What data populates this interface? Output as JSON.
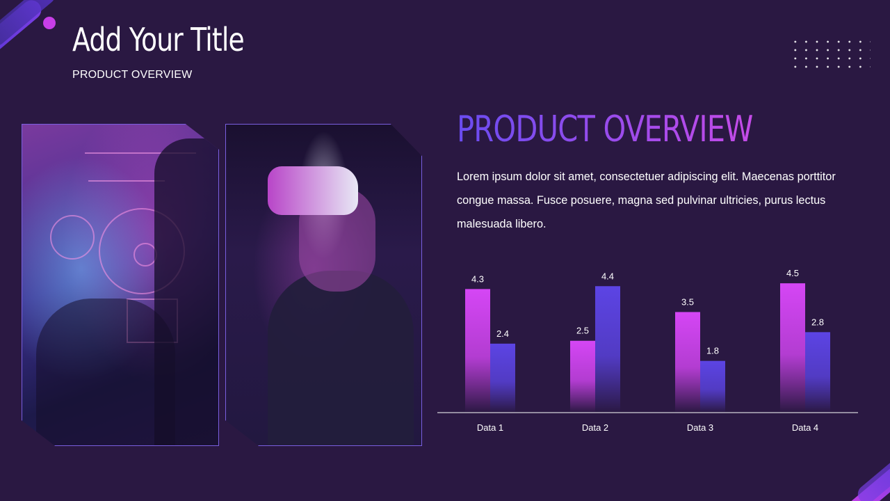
{
  "slide": {
    "title": "Add Your Title",
    "subtitle": "PRODUCT OVERVIEW",
    "heading": "PRODUCT OVERVIEW",
    "body": "Lorem ipsum dolor sit amet, consectetuer adipiscing elit.  Maecenas porttitor congue massa. Fusce posuere, magna sed pulvinar ultricies, purus lectus malesuada libero."
  },
  "images": [
    {
      "name": "person-touching-futuristic-hud"
    },
    {
      "name": "person-wearing-vr-headset"
    }
  ],
  "colors": {
    "background": "#2a1842",
    "accent_pink": "#d546f5",
    "accent_purple": "#5c44e4",
    "axis_line": "#ffffff"
  },
  "chart_data": {
    "type": "bar",
    "categories": [
      "Data 1",
      "Data 2",
      "Data 3",
      "Data 4"
    ],
    "series": [
      {
        "values": [
          4.3,
          2.5,
          3.5,
          4.5
        ],
        "color": "#d546f5"
      },
      {
        "values": [
          2.4,
          4.4,
          1.8,
          2.8
        ],
        "color": "#5c44e4"
      }
    ],
    "ylim": [
      0,
      4.6
    ],
    "grid": false,
    "legend": "none"
  }
}
